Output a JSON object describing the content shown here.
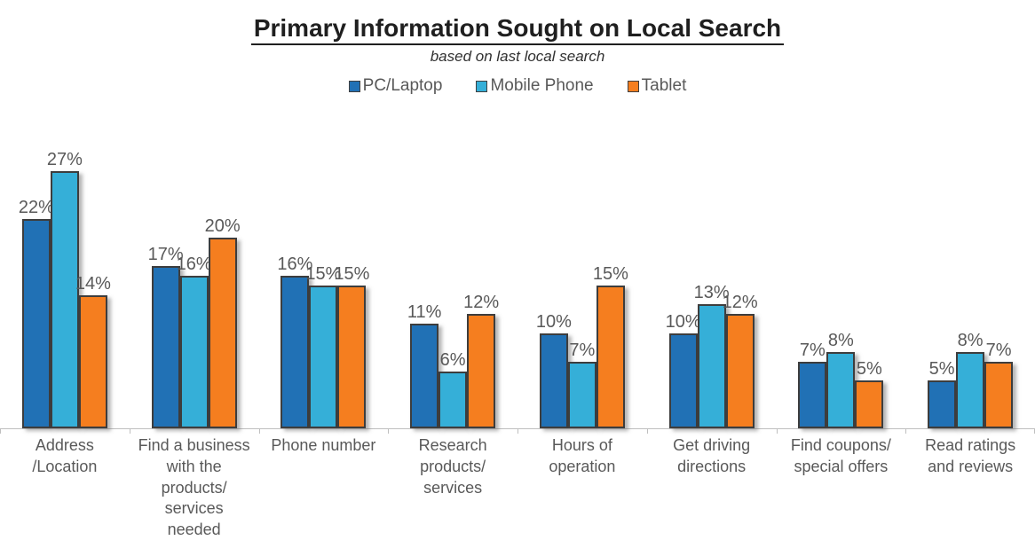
{
  "chart_data": {
    "type": "bar",
    "title": "Primary Information Sought on Local Search",
    "subtitle": "based on last local search",
    "legend_position": "top",
    "grid": false,
    "data_labels": true,
    "value_suffix": "%",
    "ylim": [
      0,
      30
    ],
    "axis_color": "#BFBFBF",
    "label_color": "#595959",
    "bar_border_color": "#3D3D3D",
    "categories": [
      "Address\n/Location",
      "Find a business\nwith the\nproducts/\nservices\nneeded",
      "Phone number",
      "Research\nproducts/\nservices",
      "Hours of\noperation",
      "Get driving\ndirections",
      "Find coupons/\nspecial offers",
      "Read ratings\nand reviews"
    ],
    "series": [
      {
        "name": "PC/Laptop",
        "color": "#2171B5",
        "values": [
          22,
          17,
          16,
          11,
          10,
          10,
          7,
          5
        ]
      },
      {
        "name": "Mobile Phone",
        "color": "#35AFD8",
        "values": [
          27,
          16,
          15,
          6,
          7,
          13,
          8,
          8
        ]
      },
      {
        "name": "Tablet",
        "color": "#F57E1F",
        "values": [
          14,
          20,
          15,
          12,
          15,
          12,
          5,
          7
        ]
      }
    ]
  }
}
